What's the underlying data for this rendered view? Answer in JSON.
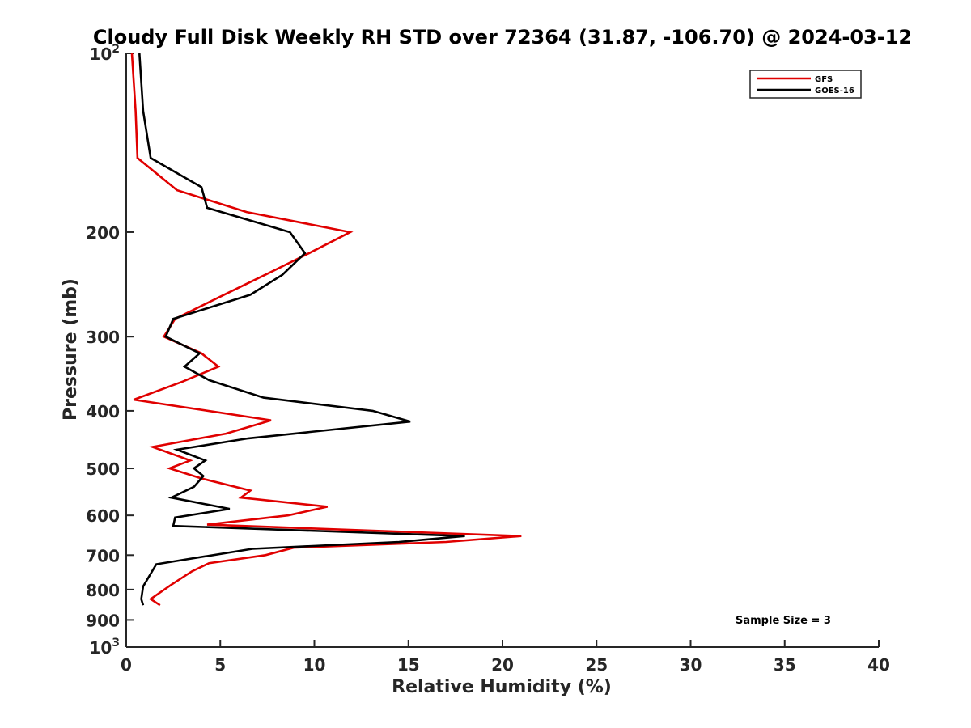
{
  "chart_data": {
    "type": "line",
    "title": "Cloudy Full Disk Weekly RH STD over 72364 (31.87, -106.70) @ 2024-03-12",
    "xlabel": "Relative Humidity (%)",
    "ylabel": "Pressure (mb)",
    "xlim": [
      0,
      40
    ],
    "ylim": [
      100,
      1000
    ],
    "y_scale": "log",
    "y_reversed": true,
    "grid": false,
    "legend_position": "top-right",
    "x_ticks": [
      0,
      5,
      10,
      15,
      20,
      25,
      30,
      35,
      40
    ],
    "x_tick_labels": [
      "0",
      "5",
      "10",
      "15",
      "20",
      "25",
      "30",
      "35",
      "40"
    ],
    "y_ticks": [
      100,
      200,
      300,
      400,
      500,
      600,
      700,
      800,
      900,
      1000
    ],
    "y_tick_labels": [
      {
        "base": "10",
        "exp": "2"
      },
      {
        "base": "200",
        "exp": ""
      },
      {
        "base": "300",
        "exp": ""
      },
      {
        "base": "400",
        "exp": ""
      },
      {
        "base": "500",
        "exp": ""
      },
      {
        "base": "600",
        "exp": ""
      },
      {
        "base": "700",
        "exp": ""
      },
      {
        "base": "800",
        "exp": ""
      },
      {
        "base": "900",
        "exp": ""
      },
      {
        "base": "10",
        "exp": "3"
      }
    ],
    "annotation": "Sample Size = 3",
    "series": [
      {
        "name": "GFS",
        "color": "#e00000",
        "points": [
          {
            "rh": 0.3,
            "p": 100
          },
          {
            "rh": 0.5,
            "p": 125
          },
          {
            "rh": 0.6,
            "p": 150
          },
          {
            "rh": 2.7,
            "p": 170
          },
          {
            "rh": 6.4,
            "p": 185
          },
          {
            "rh": 11.9,
            "p": 200
          },
          {
            "rh": 9.6,
            "p": 218
          },
          {
            "rh": 7.5,
            "p": 235
          },
          {
            "rh": 5.2,
            "p": 255
          },
          {
            "rh": 2.6,
            "p": 280
          },
          {
            "rh": 2.0,
            "p": 300
          },
          {
            "rh": 4.0,
            "p": 320
          },
          {
            "rh": 4.9,
            "p": 337
          },
          {
            "rh": 3.0,
            "p": 357
          },
          {
            "rh": 0.4,
            "p": 383
          },
          {
            "rh": 7.7,
            "p": 415
          },
          {
            "rh": 5.3,
            "p": 437
          },
          {
            "rh": 1.4,
            "p": 460
          },
          {
            "rh": 3.4,
            "p": 485
          },
          {
            "rh": 2.3,
            "p": 500
          },
          {
            "rh": 4.0,
            "p": 520
          },
          {
            "rh": 6.6,
            "p": 545
          },
          {
            "rh": 6.1,
            "p": 560
          },
          {
            "rh": 10.7,
            "p": 580
          },
          {
            "rh": 8.6,
            "p": 600
          },
          {
            "rh": 4.3,
            "p": 622
          },
          {
            "rh": 21.0,
            "p": 650
          },
          {
            "rh": 17.0,
            "p": 665
          },
          {
            "rh": 8.9,
            "p": 680
          },
          {
            "rh": 7.4,
            "p": 700
          },
          {
            "rh": 4.4,
            "p": 722
          },
          {
            "rh": 3.5,
            "p": 745
          },
          {
            "rh": 2.4,
            "p": 785
          },
          {
            "rh": 1.3,
            "p": 830
          },
          {
            "rh": 1.8,
            "p": 850
          }
        ]
      },
      {
        "name": "GOES-16",
        "color": "#000000",
        "points": [
          {
            "rh": 0.7,
            "p": 100
          },
          {
            "rh": 0.9,
            "p": 125
          },
          {
            "rh": 1.3,
            "p": 150
          },
          {
            "rh": 4.0,
            "p": 168
          },
          {
            "rh": 4.3,
            "p": 182
          },
          {
            "rh": 8.7,
            "p": 200
          },
          {
            "rh": 9.5,
            "p": 217
          },
          {
            "rh": 8.3,
            "p": 236
          },
          {
            "rh": 6.6,
            "p": 255
          },
          {
            "rh": 2.5,
            "p": 280
          },
          {
            "rh": 2.1,
            "p": 300
          },
          {
            "rh": 3.9,
            "p": 320
          },
          {
            "rh": 3.1,
            "p": 337
          },
          {
            "rh": 4.4,
            "p": 355
          },
          {
            "rh": 7.3,
            "p": 380
          },
          {
            "rh": 13.1,
            "p": 400
          },
          {
            "rh": 15.1,
            "p": 417
          },
          {
            "rh": 6.5,
            "p": 445
          },
          {
            "rh": 2.7,
            "p": 465
          },
          {
            "rh": 4.2,
            "p": 485
          },
          {
            "rh": 3.6,
            "p": 500
          },
          {
            "rh": 4.1,
            "p": 515
          },
          {
            "rh": 3.6,
            "p": 537
          },
          {
            "rh": 2.4,
            "p": 560
          },
          {
            "rh": 5.5,
            "p": 585
          },
          {
            "rh": 2.6,
            "p": 605
          },
          {
            "rh": 2.5,
            "p": 625
          },
          {
            "rh": 18.0,
            "p": 650
          },
          {
            "rh": 14.5,
            "p": 665
          },
          {
            "rh": 6.7,
            "p": 683
          },
          {
            "rh": 1.6,
            "p": 725
          },
          {
            "rh": 0.9,
            "p": 790
          },
          {
            "rh": 0.8,
            "p": 830
          },
          {
            "rh": 0.9,
            "p": 850
          }
        ]
      }
    ]
  }
}
